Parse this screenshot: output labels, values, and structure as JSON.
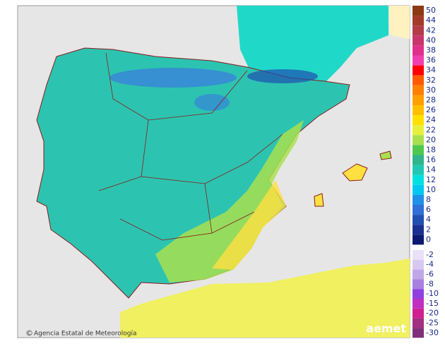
{
  "legend": {
    "upper": [
      {
        "value": 50,
        "color": "#8b3a12"
      },
      {
        "value": 44,
        "color": "#a33a2a"
      },
      {
        "value": 42,
        "color": "#b43a48"
      },
      {
        "value": 40,
        "color": "#c8356a"
      },
      {
        "value": 38,
        "color": "#e0308c"
      },
      {
        "value": 36,
        "color": "#f040b0"
      },
      {
        "value": 34,
        "color": "#ff0000"
      },
      {
        "value": 32,
        "color": "#ff5a00"
      },
      {
        "value": 30,
        "color": "#ff8000"
      },
      {
        "value": 28,
        "color": "#ffa000"
      },
      {
        "value": 26,
        "color": "#ffbf00"
      },
      {
        "value": 24,
        "color": "#ffe000"
      },
      {
        "value": 22,
        "color": "#e6f03c"
      },
      {
        "value": 20,
        "color": "#a8e050"
      },
      {
        "value": 18,
        "color": "#50c850"
      },
      {
        "value": 16,
        "color": "#30b48c"
      },
      {
        "value": 14,
        "color": "#20c8b4"
      },
      {
        "value": 12,
        "color": "#00e0e0"
      },
      {
        "value": 10,
        "color": "#00c8f0"
      },
      {
        "value": 8,
        "color": "#2090e8"
      },
      {
        "value": 6,
        "color": "#3070d8"
      },
      {
        "value": 4,
        "color": "#2050b0"
      },
      {
        "value": 2,
        "color": "#1a3090"
      },
      {
        "value": 0,
        "color": "#0a1a70"
      }
    ],
    "lower": [
      {
        "value": -2,
        "color": "#e8e0f8"
      },
      {
        "value": -4,
        "color": "#d8c8f0"
      },
      {
        "value": -6,
        "color": "#c0a8e8"
      },
      {
        "value": -8,
        "color": "#a880e0"
      },
      {
        "value": -10,
        "color": "#9040e0"
      },
      {
        "value": -15,
        "color": "#c030c0"
      },
      {
        "value": -20,
        "color": "#d02090"
      },
      {
        "value": -25,
        "color": "#a03080"
      },
      {
        "value": -30,
        "color": "#80307a"
      }
    ]
  },
  "footer": {
    "credit": "Agencia Estatal de Meteorología",
    "logo": "aemet"
  }
}
